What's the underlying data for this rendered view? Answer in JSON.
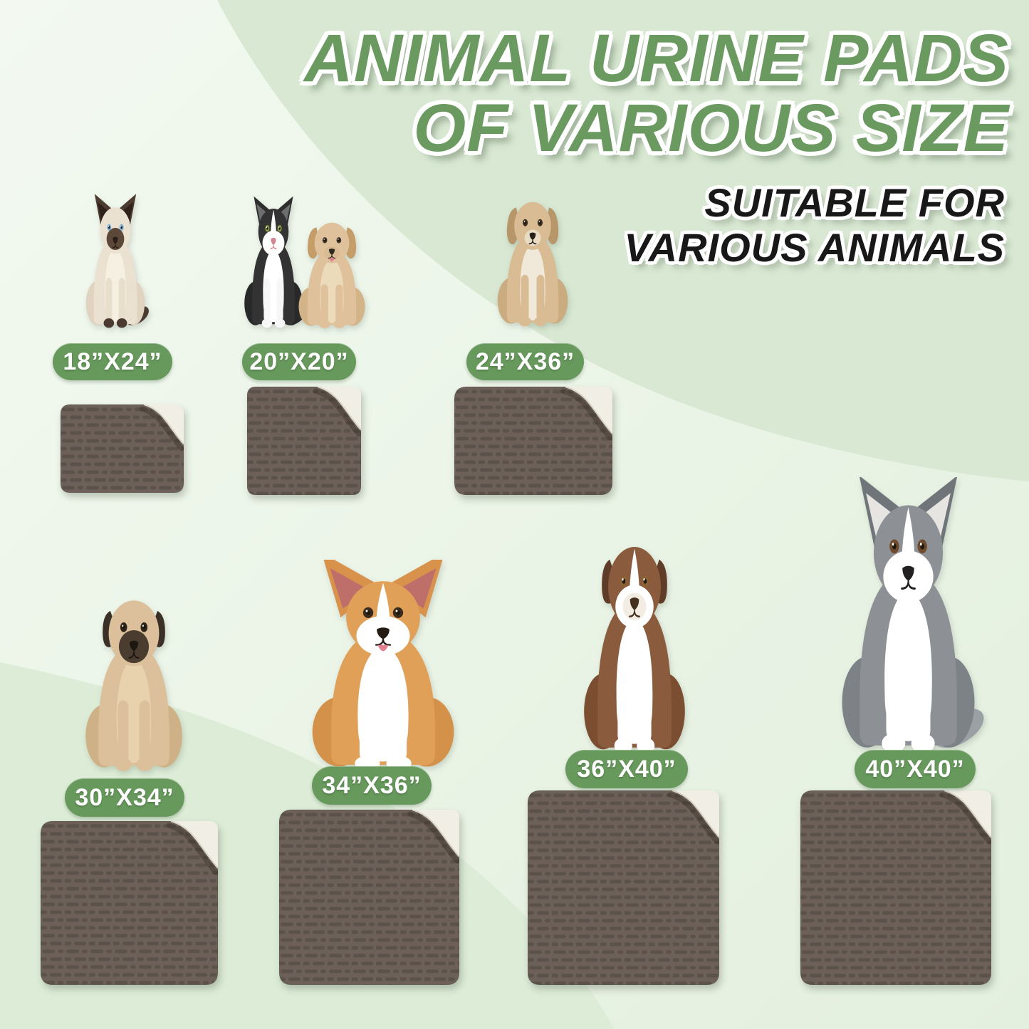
{
  "title": {
    "line1": "ANIMAL URINE PADS",
    "line2": "OF VARIOUS SIZE"
  },
  "subtitle": {
    "line1": "SUITABLE FOR",
    "line2": "VARIOUS ANIMALS"
  },
  "colors": {
    "title_green": "#6b9a60",
    "subtitle_black": "#181818",
    "badge_green": "#67985c",
    "badge_text": "#ffffff",
    "pad_top": "#6c6058",
    "pad_texture": "#5b524b",
    "pad_underside": "#f1eee6",
    "background_light": "#f3f9f1",
    "background_swoosh": "#d8e8d2"
  },
  "groups": [
    {
      "size_label": "18”X24”",
      "animals": [
        "siamese-cat"
      ]
    },
    {
      "size_label": "20”X20”",
      "animals": [
        "tuxedo-cat",
        "labrador-puppy"
      ]
    },
    {
      "size_label": "24”X36”",
      "animals": [
        "tan-dog"
      ]
    },
    {
      "size_label": "30”X34”",
      "animals": [
        "pug"
      ]
    },
    {
      "size_label": "34”X36”",
      "animals": [
        "corgi"
      ]
    },
    {
      "size_label": "36”X40”",
      "animals": [
        "australian-shepherd"
      ]
    },
    {
      "size_label": "40”X40”",
      "animals": [
        "siberian-husky"
      ]
    }
  ]
}
